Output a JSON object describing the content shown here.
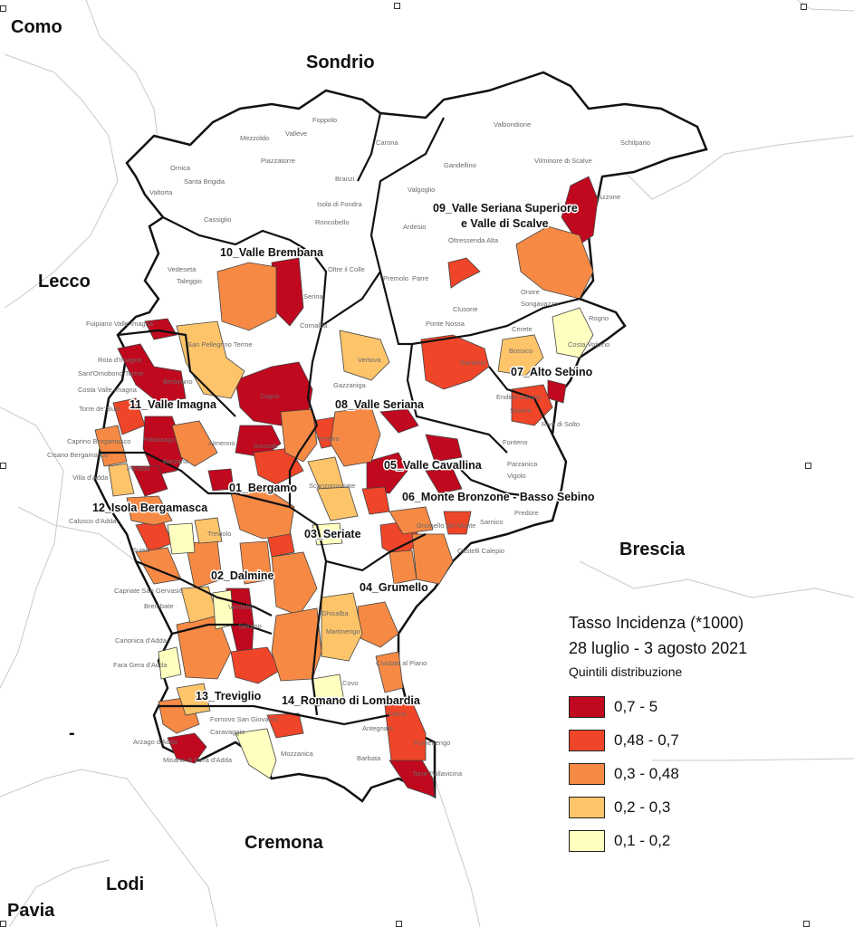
{
  "legend": {
    "title": "Tasso Incidenza (*1000)",
    "period": "28 luglio - 3 agosto 2021",
    "subtitle": "Quintili distribuzione",
    "classes": [
      {
        "label": "0,7 - 5",
        "color": "#c0081e"
      },
      {
        "label": "0,48 - 0,7",
        "color": "#ef4528"
      },
      {
        "label": "0,3 - 0,48",
        "color": "#f68a45"
      },
      {
        "label": "0,2 - 0,3",
        "color": "#fdc46a"
      },
      {
        "label": "0,1 - 0,2",
        "color": "#ffffbf"
      }
    ]
  },
  "provinces": [
    "Como",
    "Sondrio",
    "Lecco",
    "Brescia",
    "Cremona",
    "Lodi",
    "Pavia",
    "-"
  ],
  "districts": [
    "10_Valle Brembana",
    "09_Valle Seriana Superiore",
    "e Valle di Scalve",
    "07_Alto Sebino",
    "11_Valle Imagna",
    "08_Valle Seriana",
    "05_Valle Cavallina",
    "01_Bergamo",
    "06_Monte Bronzone - Basso Sebino",
    "12_Isola Bergamasca",
    "03_Seriate",
    "02_Dalmine",
    "04_Grumello",
    "13_Treviglio",
    "14_Romano di Lombardia"
  ],
  "towns": [
    "Foppolo",
    "Valleve",
    "Carona",
    "Mezzoldo",
    "Valbondione",
    "Schilpario",
    "Ornica",
    "Piazzatorre",
    "Branzi",
    "Gandellino",
    "Vilminore di Scalve",
    "Santa Brigida",
    "Valtorta",
    "Isola di Fondra",
    "Valgoglio",
    "Azzone",
    "Cassiglio",
    "Ardesio",
    "Roncobello",
    "Oltressenda Alta",
    "Vedeseta",
    "Taleggio",
    "Oltre il Colle",
    "Premolo",
    "Parre",
    "Serina",
    "Cornalba",
    "Onore",
    "Songavazzo",
    "Rogno",
    "Fuipiano Valle Imagna",
    "San Pellegrino Terme",
    "Clusone",
    "Ponte Nossa",
    "Cerete",
    "Costa Volpino",
    "Rota d'Imagna",
    "Sant'Omobono Terme",
    "Berbenno",
    "Costa Valle Imagna",
    "Vertova",
    "Gandino",
    "Bossico",
    "Zogno",
    "Gazzaniga",
    "Endine Gaiano",
    "Sovere",
    "Torre de' Busi",
    "Palazzago",
    "Nembro",
    "Fonteno",
    "Riva di Solto",
    "Sorisole",
    "Almenno",
    "Caprino Bergamasco",
    "Cisano Bergamasco",
    "Barzana",
    "Villa d'Adda",
    "Pontida",
    "Calusco d'Adda",
    "Scanzorosciate",
    "Parzanica",
    "Vigolo",
    "Predore",
    "Sarnico",
    "Treviolo",
    "Suisio",
    "Grumello del Monte",
    "Castelli Calepio",
    "Capriate San Gervasio",
    "Brembate",
    "Canonica d'Adda",
    "Ghisalba",
    "Martinengo",
    "Fara Gera d'Adda",
    "Verdello",
    "Spirano",
    "Calcio",
    "Pumenengo",
    "Torre Pallavicina",
    "Arzago d'Adda",
    "Caravaggio",
    "Fornovo San Giovanni",
    "Mozzanica",
    "Barbata",
    "Antegnate",
    "Misano di Gera d'Adda",
    "Cividate al Piano",
    "Covo"
  ]
}
